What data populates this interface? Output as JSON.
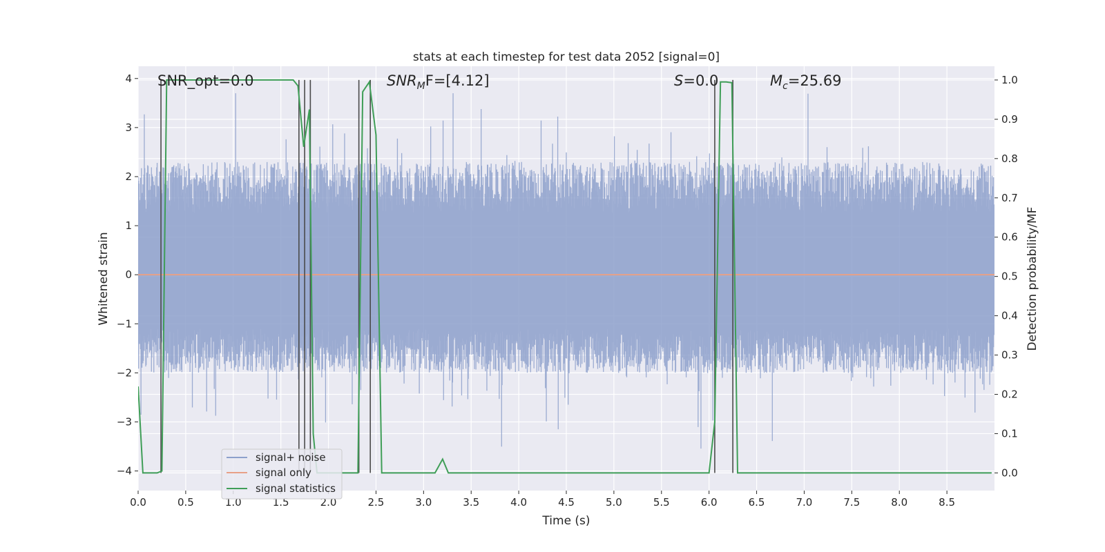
{
  "chart_data": {
    "type": "line",
    "title": "stats at each timestep for test data 2052 [signal=0]",
    "xlabel": "Time (s)",
    "ylabel_left": "Whitened strain",
    "ylabel_right": "Detection probability/MF",
    "xlim": [
      0.0,
      9.0
    ],
    "ylim_left": [
      -4.4,
      4.25
    ],
    "ylim_right": [
      -0.045,
      1.035
    ],
    "x_ticks": [
      0.0,
      0.5,
      1.0,
      1.5,
      2.0,
      2.5,
      3.0,
      3.5,
      4.0,
      4.5,
      5.0,
      5.5,
      6.0,
      6.5,
      7.0,
      7.5,
      8.0,
      8.5
    ],
    "x_tick_labels": [
      "0.0",
      "0.5",
      "1.0",
      "1.5",
      "2.0",
      "2.5",
      "3.0",
      "3.5",
      "4.0",
      "4.5",
      "5.0",
      "5.5",
      "6.0",
      "6.5",
      "7.0",
      "7.5",
      "8.0",
      "8.5"
    ],
    "y_left_ticks": [
      -4,
      -3,
      -2,
      -1,
      0,
      1,
      2,
      3,
      4
    ],
    "y_left_tick_labels": [
      "−4",
      "−3",
      "−2",
      "−1",
      "0",
      "1",
      "2",
      "3",
      "4"
    ],
    "y_right_ticks": [
      0.0,
      0.1,
      0.2,
      0.3,
      0.4,
      0.5,
      0.6,
      0.7,
      0.8,
      0.9,
      1.0
    ],
    "y_right_tick_labels": [
      "0.0",
      "0.1",
      "0.2",
      "0.3",
      "0.4",
      "0.5",
      "0.6",
      "0.7",
      "0.8",
      "0.9",
      "1.0"
    ],
    "grid": true,
    "legend_position": "lower-left",
    "annotations": {
      "snr_opt": "SNR_opt=0.0",
      "snr_mf_prefix": "SNR",
      "snr_mf_sub": "M",
      "snr_mf_rest": "F=[4.12]",
      "s_label": "S",
      "s_value": "=0.0",
      "mc_label": "M",
      "mc_sub": "c",
      "mc_value": "=25.69"
    },
    "series": [
      {
        "name": "signal+ noise",
        "color": "#8da0cb",
        "kind": "noise",
        "sample_count": 1800,
        "typical_envelope": [
          -2.0,
          2.3
        ],
        "max_abs_peak": 3.7
      },
      {
        "name": "signal only",
        "color": "#e8a087",
        "kind": "flat",
        "value": 0.0
      },
      {
        "name": "signal statistics",
        "color": "#3f9e57",
        "kind": "line",
        "axis": "right",
        "x": [
          0.0,
          0.05,
          0.2,
          0.25,
          0.3,
          1.63,
          1.68,
          1.74,
          1.8,
          1.84,
          1.88,
          1.92,
          2.31,
          2.36,
          2.43,
          2.5,
          2.56,
          3.12,
          3.2,
          3.26,
          6.0,
          6.06,
          6.12,
          6.18,
          6.24,
          6.3,
          8.97
        ],
        "y": [
          0.22,
          0.0,
          0.0,
          0.005,
          1.0,
          1.0,
          0.985,
          0.83,
          0.925,
          0.1,
          0.0,
          0.0,
          0.0,
          0.97,
          0.995,
          0.86,
          0.0,
          0.0,
          0.035,
          0.0,
          0.0,
          0.13,
          0.995,
          0.995,
          0.993,
          0.0,
          0.0
        ]
      }
    ],
    "vertical_markers": [
      0.24,
      1.69,
      1.75,
      1.81,
      2.32,
      2.44,
      6.06,
      6.25
    ]
  }
}
